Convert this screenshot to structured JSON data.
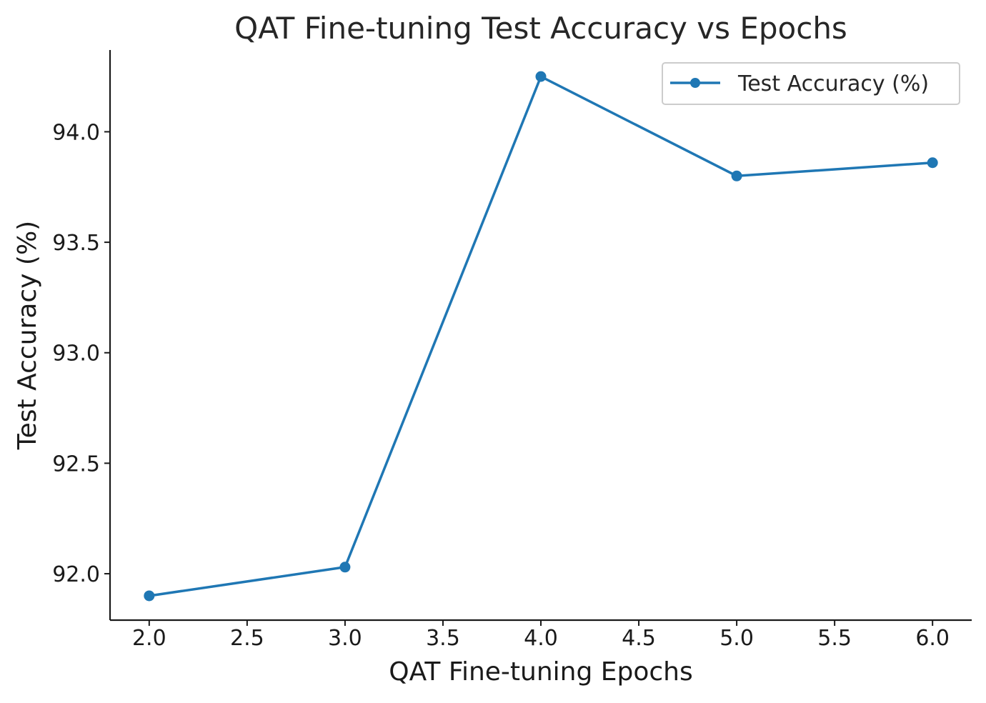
{
  "chart_data": {
    "type": "line",
    "title": "QAT Fine-tuning Test Accuracy vs Epochs",
    "xlabel": "QAT Fine-tuning Epochs",
    "ylabel": "Test Accuracy (%)",
    "xlim": [
      1.8,
      6.2
    ],
    "ylim": [
      91.79,
      94.37
    ],
    "xticks": [
      2.0,
      2.5,
      3.0,
      3.5,
      4.0,
      4.5,
      5.0,
      5.5,
      6.0
    ],
    "xtick_labels": [
      "2.0",
      "2.5",
      "3.0",
      "3.5",
      "4.0",
      "4.5",
      "5.0",
      "5.5",
      "6.0"
    ],
    "yticks": [
      92.0,
      92.5,
      93.0,
      93.5,
      94.0
    ],
    "ytick_labels": [
      "92.0",
      "92.5",
      "93.0",
      "93.5",
      "94.0"
    ],
    "grid": false,
    "legend_position": "top-right",
    "series": [
      {
        "name": "Test Accuracy (%)",
        "color": "#1f77b4",
        "marker": "circle",
        "x": [
          2,
          3,
          4,
          5,
          6
        ],
        "y": [
          91.9,
          92.03,
          94.25,
          93.8,
          93.86
        ]
      }
    ]
  }
}
